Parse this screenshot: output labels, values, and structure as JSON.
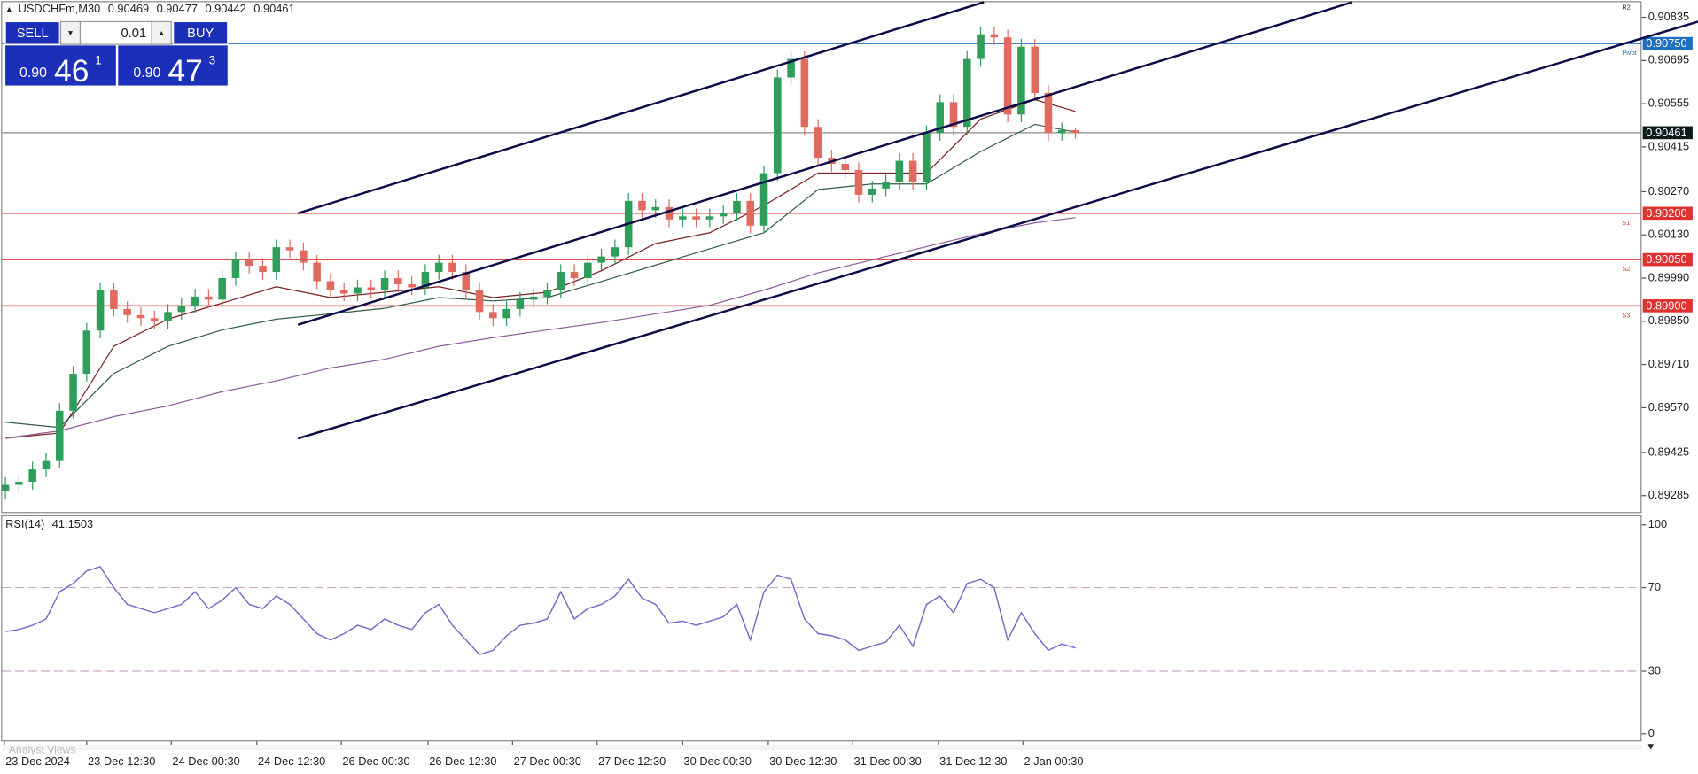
{
  "header": {
    "symbol": "USDCHFm,M30"
  },
  "trade_panel": {
    "sell": "SELL",
    "buy": "BUY",
    "volume": "0.01",
    "bid": {
      "big_figure": "0.90",
      "pips": "46",
      "fraction": "1"
    },
    "ask": {
      "big_figure": "0.90",
      "pips": "47",
      "fraction": "3"
    }
  },
  "tabs": [
    "Analyst Views"
  ],
  "r2_label": "R2",
  "chart_data": [
    {
      "type": "candlestick",
      "up_color": "#2f9e5b",
      "down_color": "#e06a60",
      "ylim": [
        0.89232,
        0.90884
      ],
      "yticks": [
        0.90835,
        0.90695,
        0.90555,
        0.90415,
        {
          "value": 0.9027,
          "label": "0.90270"
        },
        {
          "value": 0.9013,
          "label": "0.90130"
        },
        {
          "value": 0.8999,
          "label": "0.89990"
        },
        {
          "value": 0.8985,
          "label": "0.89850"
        },
        {
          "value": 0.8971,
          "label": "0.89710"
        },
        {
          "value": 0.8957,
          "label": "0.89570"
        },
        0.89425,
        0.89285
      ],
      "xticks": [
        {
          "value": -0.08,
          "label": "23 Dec 2024"
        },
        {
          "value": 6,
          "label": "23 Dec 12:30"
        },
        {
          "value": 12.24,
          "label": "24 Dec 00:30"
        },
        {
          "value": 18.56,
          "label": "24 Dec 12:30"
        },
        {
          "value": 24.8,
          "label": "26 Dec 00:30"
        },
        {
          "value": 31.2,
          "label": "26 Dec 12:30"
        },
        {
          "value": 37.44,
          "label": "27 Dec 00:30"
        },
        {
          "value": 43.68,
          "label": "27 Dec 12:30"
        },
        {
          "value": 50,
          "label": "30 Dec 00:30"
        },
        {
          "value": 56.32,
          "label": "30 Dec 12:30"
        },
        {
          "value": 62.56,
          "label": "31 Dec 00:30"
        },
        {
          "value": 68.88,
          "label": "31 Dec 12:30"
        },
        {
          "value": 75.12,
          "label": "2 Jan 00:30"
        }
      ],
      "open": [
        0.893,
        0.8932,
        0.8933,
        0.8937,
        0.894,
        0.8956,
        0.8968,
        0.8982,
        0.8995,
        0.8989,
        0.8987,
        0.8986,
        0.8985,
        0.8988,
        0.899,
        0.8993,
        0.8992,
        0.8999,
        0.9005,
        0.9003,
        0.9001,
        0.9009,
        0.9008,
        0.9004,
        0.8998,
        0.8995,
        0.8994,
        0.8996,
        0.8995,
        0.8999,
        0.8997,
        0.8996,
        0.9001,
        0.9004,
        0.9001,
        0.8995,
        0.8988,
        0.8986,
        0.8989,
        0.8992,
        0.8993,
        0.8995,
        0.9001,
        0.8999,
        0.9004,
        0.9006,
        0.9009,
        0.9024,
        0.9021,
        0.9022,
        0.9018,
        0.9019,
        0.9018,
        0.9019,
        0.902,
        0.9024,
        0.9016,
        0.9033,
        0.9064,
        0.907,
        0.9048,
        0.9038,
        0.9036,
        0.9034,
        0.9026,
        0.9028,
        0.903,
        0.9037,
        0.903,
        0.9046,
        0.9056,
        0.9048,
        0.907,
        0.9078,
        0.9077,
        0.9052,
        0.9074,
        0.9059,
        0.9046,
        0.90469
      ],
      "high": [
        0.89345,
        0.89355,
        0.89395,
        0.89425,
        0.89585,
        0.89705,
        0.89845,
        0.89975,
        0.89975,
        0.89915,
        0.89895,
        0.89885,
        0.89905,
        0.89925,
        0.89955,
        0.89955,
        0.90015,
        0.90075,
        0.90075,
        0.90055,
        0.90115,
        0.90115,
        0.90105,
        0.90065,
        0.90005,
        0.89975,
        0.89985,
        0.89985,
        0.90015,
        0.90015,
        0.89995,
        0.90035,
        0.90065,
        0.90065,
        0.90035,
        0.89975,
        0.89905,
        0.89915,
        0.89945,
        0.89955,
        0.89975,
        0.90035,
        0.90035,
        0.90065,
        0.90085,
        0.90115,
        0.90265,
        0.90265,
        0.90245,
        0.90245,
        0.90215,
        0.90215,
        0.90215,
        0.90225,
        0.90265,
        0.90265,
        0.90355,
        0.90665,
        0.90725,
        0.90725,
        0.90505,
        0.90405,
        0.90385,
        0.90365,
        0.90305,
        0.90325,
        0.90395,
        0.90395,
        0.90485,
        0.90585,
        0.90585,
        0.90725,
        0.90805,
        0.90805,
        0.90795,
        0.90765,
        0.90765,
        0.90615,
        0.90494,
        0.90477
      ],
      "low": [
        0.89275,
        0.89295,
        0.89305,
        0.89345,
        0.89375,
        0.89535,
        0.89655,
        0.89795,
        0.89865,
        0.89845,
        0.89835,
        0.89825,
        0.89825,
        0.89855,
        0.89875,
        0.89895,
        0.89895,
        0.89965,
        0.90005,
        0.89985,
        0.89985,
        0.90055,
        0.90015,
        0.89955,
        0.89925,
        0.89915,
        0.89915,
        0.89925,
        0.89925,
        0.89945,
        0.89935,
        0.89935,
        0.89985,
        0.89985,
        0.89925,
        0.89855,
        0.89835,
        0.89835,
        0.89865,
        0.89895,
        0.89905,
        0.89925,
        0.89965,
        0.89965,
        0.90015,
        0.90035,
        0.90065,
        0.90185,
        0.90185,
        0.90155,
        0.90155,
        0.90155,
        0.90155,
        0.90165,
        0.90175,
        0.90135,
        0.90135,
        0.90305,
        0.90615,
        0.90455,
        0.90355,
        0.90335,
        0.90315,
        0.90235,
        0.90235,
        0.90255,
        0.90275,
        0.90275,
        0.90275,
        0.90435,
        0.90455,
        0.90455,
        0.90675,
        0.90745,
        0.90495,
        0.90495,
        0.90565,
        0.90435,
        0.90435,
        0.90442
      ],
      "close": [
        0.8932,
        0.8933,
        0.8937,
        0.894,
        0.8956,
        0.8968,
        0.8982,
        0.8995,
        0.8989,
        0.8987,
        0.8986,
        0.8985,
        0.8988,
        0.899,
        0.8993,
        0.8992,
        0.8999,
        0.9005,
        0.9003,
        0.9001,
        0.9009,
        0.9008,
        0.9004,
        0.8998,
        0.8995,
        0.8994,
        0.8996,
        0.8995,
        0.8999,
        0.8997,
        0.8996,
        0.9001,
        0.9004,
        0.9001,
        0.8995,
        0.8988,
        0.8986,
        0.8989,
        0.8992,
        0.8993,
        0.8995,
        0.9001,
        0.8999,
        0.9004,
        0.9006,
        0.9009,
        0.9024,
        0.9021,
        0.9022,
        0.9018,
        0.9019,
        0.9018,
        0.9019,
        0.902,
        0.9024,
        0.9016,
        0.9033,
        0.9064,
        0.907,
        0.9048,
        0.9038,
        0.9036,
        0.9034,
        0.9026,
        0.9028,
        0.903,
        0.9037,
        0.903,
        0.9046,
        0.9056,
        0.9048,
        0.907,
        0.9078,
        0.9077,
        0.9052,
        0.9074,
        0.9059,
        0.9046,
        0.90469,
        0.90461
      ],
      "ma": [
        {
          "color": "#7a1f1f",
          "x": [
            0,
            4,
            8,
            12,
            16,
            20,
            24,
            28,
            32,
            36,
            40,
            44,
            48,
            52,
            56,
            60,
            64,
            68,
            72,
            76,
            79
          ],
          "values": [
            0.89471,
            0.89488,
            0.89769,
            0.89857,
            0.89909,
            0.89962,
            0.89927,
            0.89944,
            0.89962,
            0.89927,
            0.89944,
            0.90014,
            0.90102,
            0.90137,
            0.90225,
            0.9033,
            0.9033,
            0.9033,
            0.90505,
            0.90568,
            0.9053
          ]
        },
        {
          "color": "#2f5e46",
          "x": [
            0,
            4,
            8,
            12,
            16,
            20,
            24,
            28,
            32,
            36,
            40,
            44,
            48,
            52,
            56,
            60,
            64,
            68,
            72,
            76,
            79
          ],
          "values": [
            0.89523,
            0.89506,
            0.89681,
            0.89769,
            0.89822,
            0.89857,
            0.89874,
            0.89892,
            0.89927,
            0.89916,
            0.89927,
            0.89979,
            0.90032,
            0.90085,
            0.90137,
            0.90277,
            0.90295,
            0.90295,
            0.904,
            0.90488,
            0.90463
          ]
        },
        {
          "color": "#8e5a9e",
          "x": [
            0,
            4,
            8,
            12,
            16,
            20,
            24,
            28,
            32,
            36,
            40,
            44,
            48,
            52,
            56,
            60,
            64,
            68,
            72,
            76,
            79
          ],
          "values": [
            0.89471,
            0.89495,
            0.89541,
            0.89576,
            0.89622,
            0.89657,
            0.89699,
            0.89727,
            0.89769,
            0.89797,
            0.89822,
            0.89846,
            0.89874,
            0.89902,
            0.89951,
            0.90007,
            0.90049,
            0.90092,
            0.90134,
            0.90169,
            0.90186
          ]
        }
      ],
      "levels": [
        {
          "name": "Pivot",
          "value": 0.9075,
          "label": "0.90750",
          "color": "#1f6fc0"
        },
        {
          "name": "S1",
          "value": 0.902,
          "label": "0.90200",
          "color": "#e03030"
        },
        {
          "name": "S2",
          "value": 0.9005,
          "label": "0.90050",
          "color": "#e03030"
        },
        {
          "name": "S3",
          "value": 0.899,
          "label": "0.89900",
          "color": "#e03030"
        }
      ]
    },
    {
      "type": "line",
      "title": "RSI(14)",
      "color": "#7b68c8",
      "ylim": [
        -3.6,
        104.1
      ],
      "yticks": [
        0,
        30,
        70,
        100
      ],
      "levels": [
        70,
        30
      ],
      "values": [
        49,
        50,
        52,
        55,
        68,
        72,
        78,
        80,
        70,
        62,
        60,
        58,
        60,
        62,
        68,
        60,
        64,
        70,
        62,
        60,
        66,
        62,
        55,
        48,
        45,
        48,
        52,
        50,
        55,
        52,
        50,
        58,
        62,
        52,
        45,
        38,
        40,
        47,
        52,
        53,
        55,
        68,
        55,
        60,
        62,
        66,
        74,
        65,
        62,
        53,
        54,
        52,
        54,
        56,
        62,
        45,
        68,
        76,
        74,
        55,
        48,
        47,
        45,
        40,
        42,
        44,
        52,
        42,
        62,
        66,
        58,
        72,
        74,
        70,
        45,
        58,
        48,
        40,
        43,
        41.1503
      ]
    }
  ]
}
